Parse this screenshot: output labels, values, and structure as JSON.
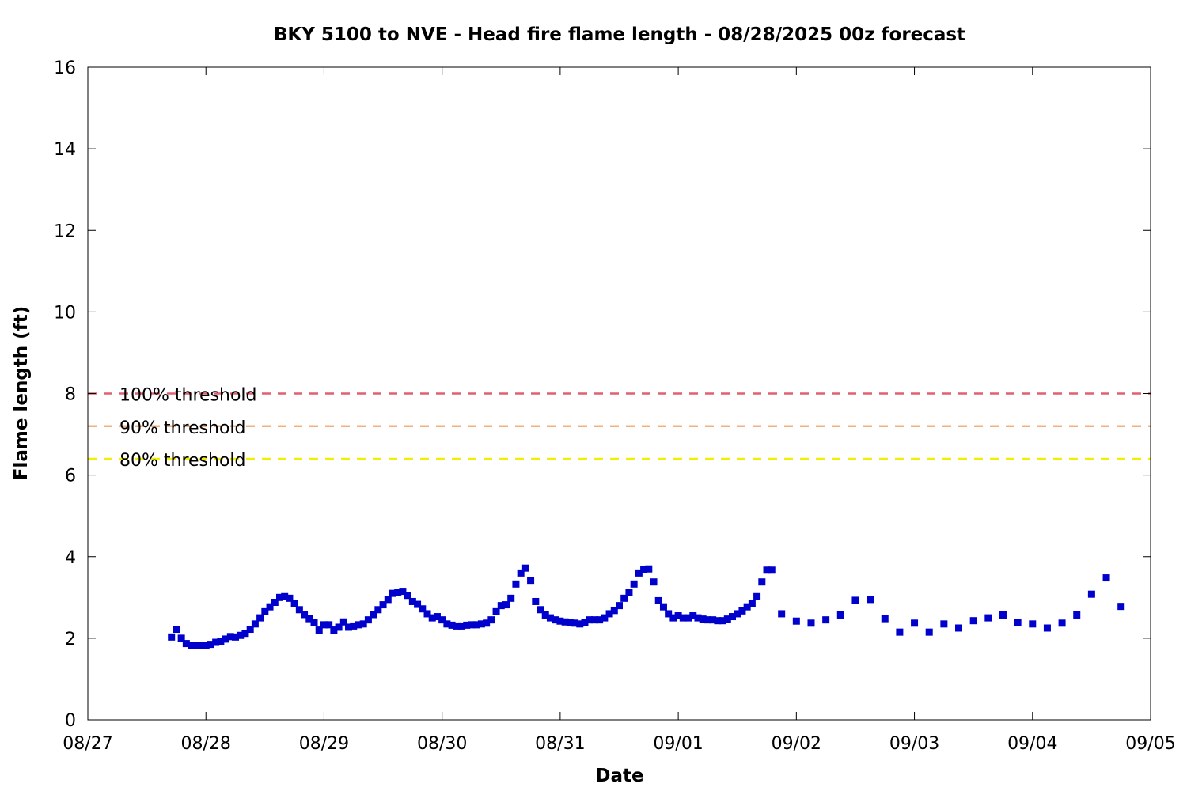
{
  "chart_data": {
    "type": "scatter",
    "title": "BKY 5100 to NVE - Head fire flame length - 08/28/2025 00z forecast",
    "xlabel": "Date",
    "ylabel": "Flame length (ft)",
    "xlim": [
      "08/27",
      "09/05"
    ],
    "ylim": [
      0,
      16
    ],
    "x_tick_labels": [
      "08/27",
      "08/28",
      "08/29",
      "08/30",
      "08/31",
      "09/01",
      "09/02",
      "09/03",
      "09/04",
      "09/05"
    ],
    "y_tick_labels": [
      "0",
      "2",
      "4",
      "6",
      "8",
      "10",
      "12",
      "14",
      "16"
    ],
    "grid": false,
    "series_color": "#0000cc",
    "thresholds": [
      {
        "label": "100% threshold",
        "value": 8.0,
        "color": "#e06070"
      },
      {
        "label": "90% threshold",
        "value": 7.2,
        "color": "#f4b07c"
      },
      {
        "label": "80% threshold",
        "value": 6.4,
        "color": "#f0f000"
      }
    ],
    "series": [
      {
        "points": [
          [
            "08/27 17:00",
            2.03
          ],
          [
            "08/27 18:00",
            2.22
          ],
          [
            "08/27 19:00",
            2.0
          ],
          [
            "08/27 20:00",
            1.87
          ],
          [
            "08/27 21:00",
            1.82
          ],
          [
            "08/27 22:00",
            1.83
          ],
          [
            "08/27 23:00",
            1.82
          ],
          [
            "08/28 00:00",
            1.83
          ],
          [
            "08/28 01:00",
            1.85
          ],
          [
            "08/28 02:00",
            1.9
          ],
          [
            "08/28 03:00",
            1.93
          ],
          [
            "08/28 04:00",
            1.98
          ],
          [
            "08/28 05:00",
            2.04
          ],
          [
            "08/28 06:00",
            2.03
          ],
          [
            "08/28 07:00",
            2.07
          ],
          [
            "08/28 08:00",
            2.12
          ],
          [
            "08/28 09:00",
            2.22
          ],
          [
            "08/28 10:00",
            2.35
          ],
          [
            "08/28 11:00",
            2.5
          ],
          [
            "08/28 12:00",
            2.65
          ],
          [
            "08/28 13:00",
            2.77
          ],
          [
            "08/28 14:00",
            2.88
          ],
          [
            "08/28 15:00",
            3.0
          ],
          [
            "08/28 16:00",
            3.02
          ],
          [
            "08/28 17:00",
            2.98
          ],
          [
            "08/28 18:00",
            2.85
          ],
          [
            "08/28 19:00",
            2.7
          ],
          [
            "08/28 20:00",
            2.58
          ],
          [
            "08/28 21:00",
            2.48
          ],
          [
            "08/28 22:00",
            2.38
          ],
          [
            "08/28 23:00",
            2.2
          ],
          [
            "08/29 00:00",
            2.33
          ],
          [
            "08/29 01:00",
            2.33
          ],
          [
            "08/29 02:00",
            2.2
          ],
          [
            "08/29 03:00",
            2.27
          ],
          [
            "08/29 04:00",
            2.4
          ],
          [
            "08/29 05:00",
            2.27
          ],
          [
            "08/29 06:00",
            2.3
          ],
          [
            "08/29 07:00",
            2.33
          ],
          [
            "08/29 08:00",
            2.35
          ],
          [
            "08/29 09:00",
            2.45
          ],
          [
            "08/29 10:00",
            2.58
          ],
          [
            "08/29 11:00",
            2.7
          ],
          [
            "08/29 12:00",
            2.82
          ],
          [
            "08/29 13:00",
            2.95
          ],
          [
            "08/29 14:00",
            3.1
          ],
          [
            "08/29 15:00",
            3.13
          ],
          [
            "08/29 16:00",
            3.15
          ],
          [
            "08/29 17:00",
            3.05
          ],
          [
            "08/29 18:00",
            2.9
          ],
          [
            "08/29 19:00",
            2.83
          ],
          [
            "08/29 20:00",
            2.72
          ],
          [
            "08/29 21:00",
            2.6
          ],
          [
            "08/29 22:00",
            2.5
          ],
          [
            "08/29 23:00",
            2.53
          ],
          [
            "08/30 00:00",
            2.45
          ],
          [
            "08/30 01:00",
            2.35
          ],
          [
            "08/30 02:00",
            2.32
          ],
          [
            "08/30 03:00",
            2.3
          ],
          [
            "08/30 04:00",
            2.3
          ],
          [
            "08/30 05:00",
            2.32
          ],
          [
            "08/30 06:00",
            2.33
          ],
          [
            "08/30 07:00",
            2.33
          ],
          [
            "08/30 08:00",
            2.35
          ],
          [
            "08/30 09:00",
            2.37
          ],
          [
            "08/30 10:00",
            2.45
          ],
          [
            "08/30 11:00",
            2.65
          ],
          [
            "08/30 12:00",
            2.8
          ],
          [
            "08/30 13:00",
            2.82
          ],
          [
            "08/30 14:00",
            2.98
          ],
          [
            "08/30 15:00",
            3.33
          ],
          [
            "08/30 16:00",
            3.6
          ],
          [
            "08/30 17:00",
            3.72
          ],
          [
            "08/30 18:00",
            3.42
          ],
          [
            "08/30 19:00",
            2.9
          ],
          [
            "08/30 20:00",
            2.7
          ],
          [
            "08/30 21:00",
            2.57
          ],
          [
            "08/30 22:00",
            2.5
          ],
          [
            "08/30 23:00",
            2.45
          ],
          [
            "08/31 00:00",
            2.42
          ],
          [
            "08/31 01:00",
            2.4
          ],
          [
            "08/31 02:00",
            2.38
          ],
          [
            "08/31 03:00",
            2.37
          ],
          [
            "08/31 04:00",
            2.35
          ],
          [
            "08/31 05:00",
            2.38
          ],
          [
            "08/31 06:00",
            2.45
          ],
          [
            "08/31 07:00",
            2.45
          ],
          [
            "08/31 08:00",
            2.45
          ],
          [
            "08/31 09:00",
            2.5
          ],
          [
            "08/31 10:00",
            2.6
          ],
          [
            "08/31 11:00",
            2.68
          ],
          [
            "08/31 12:00",
            2.8
          ],
          [
            "08/31 13:00",
            2.98
          ],
          [
            "08/31 14:00",
            3.12
          ],
          [
            "08/31 15:00",
            3.33
          ],
          [
            "08/31 16:00",
            3.6
          ],
          [
            "08/31 17:00",
            3.68
          ],
          [
            "08/31 18:00",
            3.7
          ],
          [
            "08/31 19:00",
            3.38
          ],
          [
            "08/31 20:00",
            2.92
          ],
          [
            "08/31 21:00",
            2.77
          ],
          [
            "08/31 22:00",
            2.6
          ],
          [
            "08/31 23:00",
            2.5
          ],
          [
            "09/01 00:00",
            2.55
          ],
          [
            "09/01 01:00",
            2.5
          ],
          [
            "09/01 02:00",
            2.5
          ],
          [
            "09/01 03:00",
            2.55
          ],
          [
            "09/01 04:00",
            2.5
          ],
          [
            "09/01 05:00",
            2.47
          ],
          [
            "09/01 06:00",
            2.45
          ],
          [
            "09/01 07:00",
            2.45
          ],
          [
            "09/01 08:00",
            2.43
          ],
          [
            "09/01 09:00",
            2.43
          ],
          [
            "09/01 10:00",
            2.47
          ],
          [
            "09/01 11:00",
            2.53
          ],
          [
            "09/01 12:00",
            2.6
          ],
          [
            "09/01 13:00",
            2.67
          ],
          [
            "09/01 14:00",
            2.77
          ],
          [
            "09/01 15:00",
            2.85
          ],
          [
            "09/01 16:00",
            3.02
          ],
          [
            "09/01 17:00",
            3.38
          ],
          [
            "09/01 18:00",
            3.67
          ],
          [
            "09/01 19:00",
            3.67
          ],
          [
            "09/01 21:00",
            2.6
          ],
          [
            "09/02 00:00",
            2.42
          ],
          [
            "09/02 03:00",
            2.37
          ],
          [
            "09/02 06:00",
            2.45
          ],
          [
            "09/02 09:00",
            2.57
          ],
          [
            "09/02 12:00",
            2.93
          ],
          [
            "09/02 15:00",
            2.95
          ],
          [
            "09/02 18:00",
            2.48
          ],
          [
            "09/02 21:00",
            2.15
          ],
          [
            "09/03 00:00",
            2.37
          ],
          [
            "09/03 03:00",
            2.15
          ],
          [
            "09/03 06:00",
            2.35
          ],
          [
            "09/03 09:00",
            2.25
          ],
          [
            "09/03 12:00",
            2.43
          ],
          [
            "09/03 15:00",
            2.5
          ],
          [
            "09/03 18:00",
            2.57
          ],
          [
            "09/03 21:00",
            2.38
          ],
          [
            "09/04 00:00",
            2.35
          ],
          [
            "09/04 03:00",
            2.25
          ],
          [
            "09/04 06:00",
            2.37
          ],
          [
            "09/04 09:00",
            2.57
          ],
          [
            "09/04 12:00",
            3.08
          ],
          [
            "09/04 15:00",
            3.48
          ],
          [
            "09/04 18:00",
            2.78
          ]
        ]
      }
    ]
  }
}
